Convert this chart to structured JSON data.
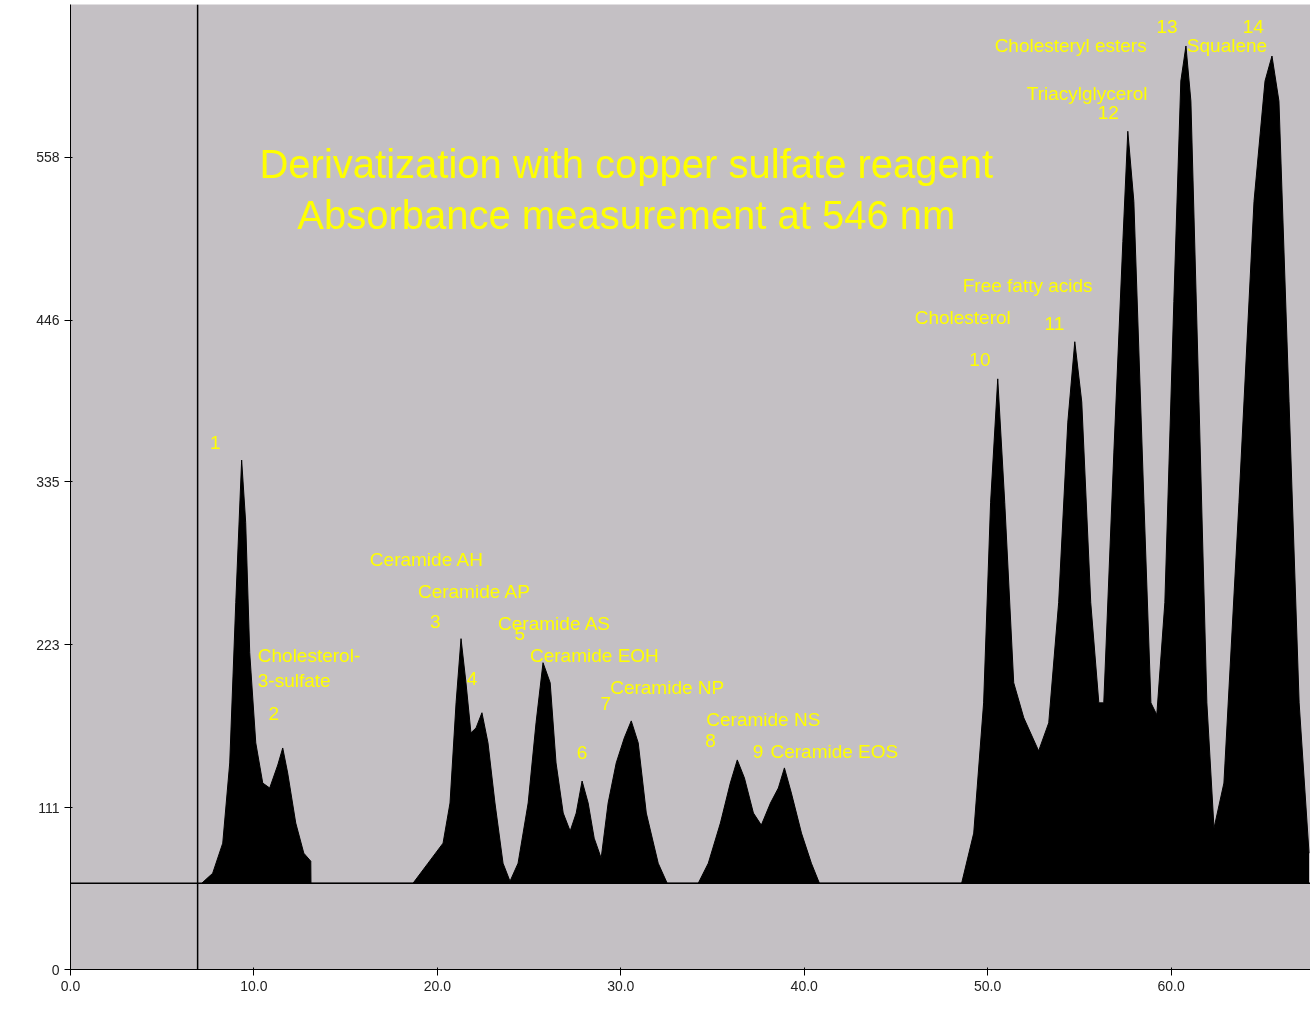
{
  "chart_data": {
    "type": "area",
    "title": "Derivatization with copper sulfate reagent",
    "subtitle": "Absorbance measurement at 546 nm",
    "x": [
      7.15,
      7.75,
      8.3,
      8.68,
      9.01,
      9.33,
      9.55,
      9.77,
      10.1,
      10.48,
      10.86,
      11.3,
      11.57,
      11.84,
      12.28,
      12.72,
      13.1,
      13.11,
      18.67,
      19.49,
      20.31,
      20.69,
      21.02,
      21.29,
      21.56,
      21.83,
      22.11,
      22.43,
      22.76,
      23.14,
      23.58,
      23.96,
      24.4,
      24.95,
      25.38,
      25.76,
      26.15,
      26.47,
      26.86,
      27.24,
      27.57,
      27.89,
      28.22,
      28.55,
      28.93,
      29.31,
      29.75,
      30.19,
      30.57,
      30.95,
      31.39,
      32.04,
      32.53,
      34.22,
      34.77,
      35.43,
      35.97,
      36.35,
      36.74,
      37.23,
      37.66,
      38.16,
      38.59,
      38.92,
      39.3,
      39.85,
      40.39,
      40.83,
      48.58,
      49.24,
      49.78,
      50.16,
      50.55,
      50.93,
      51.42,
      51.97,
      52.78,
      53.33,
      53.87,
      54.37,
      54.75,
      55.13,
      55.62,
      56.06,
      56.33,
      56.88,
      57.37,
      57.64,
      57.97,
      58.52,
      58.9,
      59.22,
      59.66,
      60.15,
      60.53,
      60.81,
      61.08,
      61.52,
      61.95,
      62.34,
      62.88,
      63.7,
      64.52,
      65.12,
      65.5,
      65.88,
      66.43,
      66.98,
      67.52
    ],
    "series": [
      {
        "color": "#000000",
        "values": [
          59.2,
          66.1,
          86.8,
          141.9,
          252.1,
          350.0,
          307.2,
          217.7,
          155.7,
          128.1,
          124.7,
          140.5,
          152.2,
          135.0,
          100.6,
          79.9,
          74.4,
          59.2,
          59.2,
          73.0,
          86.8,
          114.4,
          183.2,
          227.3,
          197.0,
          162.6,
          166.0,
          176.4,
          155.7,
          114.4,
          73.0,
          60.6,
          73.0,
          114.4,
          169.5,
          210.8,
          197.0,
          141.9,
          107.5,
          95.1,
          107.5,
          129.5,
          114.4,
          90.2,
          76.5,
          114.4,
          141.9,
          159.1,
          170.8,
          155.7,
          107.5,
          73.0,
          59.2,
          59.2,
          73.0,
          100.6,
          128.1,
          144.0,
          131.6,
          107.5,
          99.2,
          114.4,
          124.7,
          138.5,
          121.2,
          93.7,
          73.0,
          59.2,
          59.2,
          93.7,
          183.2,
          321.0,
          405.8,
          321.0,
          197.0,
          172.9,
          150.2,
          169.5,
          252.1,
          376.1,
          431.3,
          389.9,
          252.1,
          183.2,
          183.2,
          355.5,
          500.1,
          575.9,
          527.7,
          321.0,
          183.2,
          175.0,
          252.1,
          458.8,
          610.4,
          634.5,
          596.6,
          390.0,
          183.2,
          97.1,
          128.1,
          321.0,
          527.7,
          610.4,
          627.6,
          596.6,
          390.0,
          183.2,
          79.9
        ]
      }
    ],
    "xlim": [
      0,
      67.6
    ],
    "ylim": [
      0,
      663
    ],
    "xticks": [
      {
        "value": 0,
        "label": "0.0"
      },
      {
        "value": 10,
        "label": "10.0"
      },
      {
        "value": 20,
        "label": "20.0"
      },
      {
        "value": 30,
        "label": "30.0"
      },
      {
        "value": 40,
        "label": "40.0"
      },
      {
        "value": 50,
        "label": "50.0"
      },
      {
        "value": 60,
        "label": "60.0"
      }
    ],
    "yticks": [
      0,
      111,
      223,
      335,
      446,
      558
    ],
    "ref_lines": [
      {
        "axis": "y",
        "value": 59.2,
        "color": "#000000"
      },
      {
        "axis": "x",
        "value": 6.93,
        "color": "#000000"
      }
    ],
    "annotations": [
      "1",
      "2",
      "3",
      "4",
      "5",
      "6",
      "7",
      "8",
      "9",
      "10",
      "11",
      "12",
      "13",
      "14",
      "Cholesterol-\n3-sulfate",
      "Ceramide AH",
      "Ceramide AP",
      "Ceramide AS",
      "Ceramide EOH",
      "Ceramide NP",
      "Ceramide NS",
      "Ceramide EOS",
      "Cholesterol",
      "Free fatty acids",
      "Triacylglycerol",
      "Cholesteryl esters",
      "Squalene"
    ],
    "grid": false
  }
}
